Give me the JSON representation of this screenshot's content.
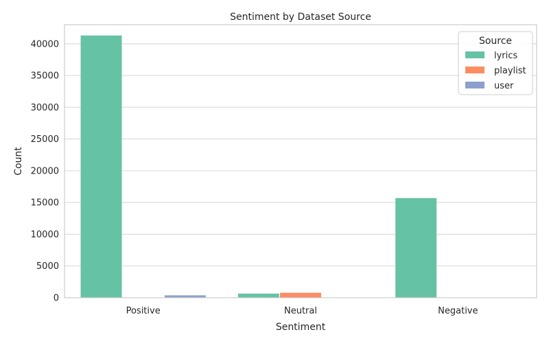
{
  "chart_data": {
    "type": "bar",
    "title": "Sentiment by Dataset Source",
    "xlabel": "Sentiment",
    "ylabel": "Count",
    "categories": [
      "Positive",
      "Neutral",
      "Negative"
    ],
    "series": [
      {
        "name": "lyrics",
        "color": "#66c2a5",
        "values": [
          41300,
          650,
          15700
        ]
      },
      {
        "name": "playlist",
        "color": "#fc8d62",
        "values": [
          30,
          780,
          20
        ]
      },
      {
        "name": "user",
        "color": "#8da0cb",
        "values": [
          380,
          40,
          10
        ]
      }
    ],
    "ylim": [
      0,
      43000
    ],
    "yticks": [
      0,
      5000,
      10000,
      15000,
      20000,
      25000,
      30000,
      35000,
      40000
    ],
    "grid": true,
    "legend": {
      "title": "Source",
      "placement": "top-right"
    }
  }
}
